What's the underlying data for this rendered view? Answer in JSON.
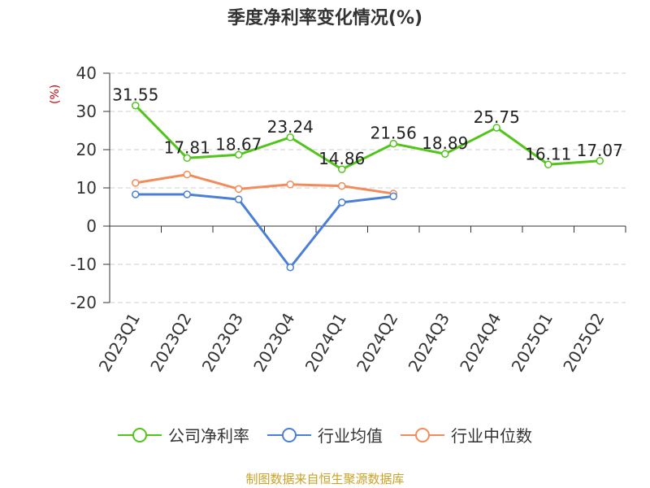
{
  "chart_data": {
    "type": "line",
    "title": "季度净利率变化情况(%)",
    "ylabel": "(%)",
    "xlabel": "",
    "ylim": [
      -20,
      40
    ],
    "yticks": [
      40,
      30,
      20,
      10,
      0,
      -10,
      -20
    ],
    "categories": [
      "2023Q1",
      "2023Q2",
      "2023Q3",
      "2023Q4",
      "2024Q1",
      "2024Q2",
      "2024Q3",
      "2024Q4",
      "2025Q1",
      "2025Q2"
    ],
    "grid": true,
    "legend_position": "bottom",
    "series": [
      {
        "name": "公司净利率",
        "color": "#52c41a",
        "values": [
          31.55,
          17.81,
          18.67,
          23.24,
          14.86,
          21.56,
          18.89,
          25.75,
          16.11,
          17.07
        ],
        "labels": [
          "31.55",
          "17.81",
          "18.67",
          "23.24",
          "14.86",
          "21.56",
          "18.89",
          "25.75",
          "16.11",
          "17.07"
        ]
      },
      {
        "name": "行业均值",
        "color": "#4a7fd6",
        "values": [
          8.3,
          8.3,
          7.0,
          -10.8,
          6.2,
          7.8,
          null,
          null,
          null,
          null
        ]
      },
      {
        "name": "行业中位数",
        "color": "#f28c5a",
        "values": [
          11.3,
          13.5,
          9.7,
          10.9,
          10.5,
          8.5,
          null,
          null,
          null,
          null
        ]
      }
    ]
  },
  "source": "制图数据来自恒生聚源数据库"
}
